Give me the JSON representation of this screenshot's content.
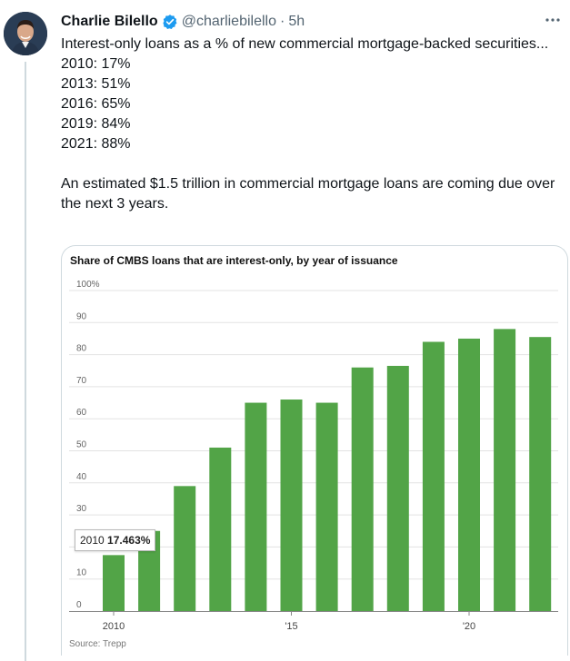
{
  "author": {
    "name": "Charlie Bilello",
    "handle": "@charliebilello",
    "separator": "·",
    "time": "5h",
    "verified": true,
    "avatar_icon": "avatar-portrait"
  },
  "tweet": {
    "lines": [
      "Interest-only loans as a % of new commercial mortgage-backed securities...",
      "2010: 17%",
      "2013: 51%",
      "2016: 65%",
      "2019: 84%",
      "2021: 88%",
      "",
      "An estimated $1.5 trillion in commercial mortgage loans are coming due over the next 3 years."
    ]
  },
  "more_icon": "more-horizontal-icon",
  "colors": {
    "bar": "#52a447",
    "grid": "#e3e3e3",
    "accent_verified": "#1d9bf0"
  },
  "chart_data": {
    "type": "bar",
    "title": "Share of CMBS loans that are interest-only, by year of issuance",
    "source": "Source: Trepp",
    "categories": [
      2010,
      2011,
      2012,
      2013,
      2014,
      2015,
      2016,
      2017,
      2018,
      2019,
      2020,
      2021,
      2022
    ],
    "x_tick_labels": [
      {
        "category": 2010,
        "label": "2010"
      },
      {
        "category": 2015,
        "label": "'15"
      },
      {
        "category": 2020,
        "label": "'20"
      }
    ],
    "values": [
      17.463,
      25,
      39,
      51,
      65,
      66,
      65,
      76,
      76.5,
      84,
      85,
      88,
      85.5
    ],
    "ylim": [
      0,
      100
    ],
    "y_ticks": [
      {
        "value": 0,
        "label": "0"
      },
      {
        "value": 10,
        "label": "10"
      },
      {
        "value": 20,
        "label": "20"
      },
      {
        "value": 30,
        "label": "30"
      },
      {
        "value": 40,
        "label": "40"
      },
      {
        "value": 50,
        "label": "50"
      },
      {
        "value": 60,
        "label": "60"
      },
      {
        "value": 70,
        "label": "70"
      },
      {
        "value": 80,
        "label": "80"
      },
      {
        "value": 90,
        "label": "90"
      },
      {
        "value": 100,
        "label": "100%"
      }
    ],
    "grid": true,
    "tooltip": {
      "category": "2010",
      "value": "17.463%"
    }
  }
}
